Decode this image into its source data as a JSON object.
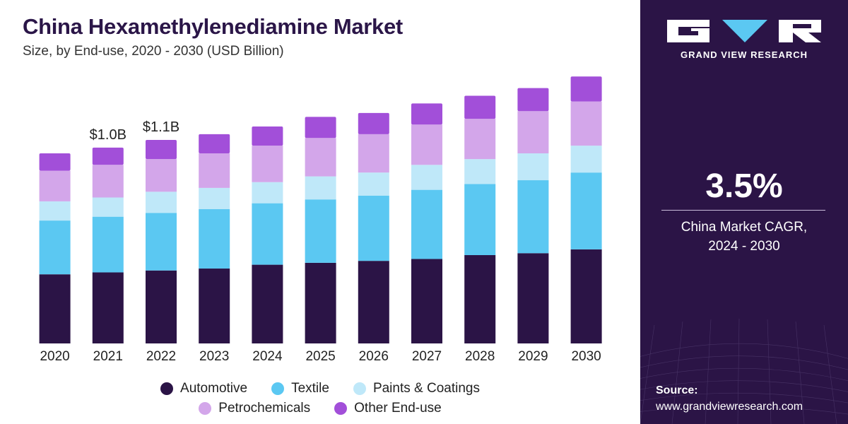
{
  "chart_data": {
    "type": "bar",
    "stacked": true,
    "title": "China Hexamethylenediamine Market",
    "subtitle": "Size, by End-use, 2020 - 2030 (USD Billion)",
    "categories": [
      "2020",
      "2021",
      "2022",
      "2023",
      "2024",
      "2025",
      "2026",
      "2027",
      "2028",
      "2029",
      "2030"
    ],
    "series": [
      {
        "name": "Automotive",
        "color": "#2b1446",
        "values": [
          0.36,
          0.37,
          0.38,
          0.39,
          0.41,
          0.42,
          0.43,
          0.44,
          0.46,
          0.47,
          0.49
        ]
      },
      {
        "name": "Textile",
        "color": "#5bc8f2",
        "values": [
          0.28,
          0.29,
          0.3,
          0.31,
          0.32,
          0.33,
          0.34,
          0.36,
          0.37,
          0.38,
          0.4
        ]
      },
      {
        "name": "Paints & Coatings",
        "color": "#bfe8f9",
        "values": [
          0.1,
          0.1,
          0.11,
          0.11,
          0.11,
          0.12,
          0.12,
          0.13,
          0.13,
          0.14,
          0.14
        ]
      },
      {
        "name": "Petrochemicals",
        "color": "#d3a6ea",
        "values": [
          0.16,
          0.17,
          0.17,
          0.18,
          0.19,
          0.2,
          0.2,
          0.21,
          0.21,
          0.22,
          0.23
        ]
      },
      {
        "name": "Other End-use",
        "color": "#a24fd9",
        "values": [
          0.09,
          0.09,
          0.1,
          0.1,
          0.1,
          0.11,
          0.11,
          0.11,
          0.12,
          0.12,
          0.13
        ]
      }
    ],
    "annotations": [
      {
        "category": "2021",
        "text": "$1.0B"
      },
      {
        "category": "2022",
        "text": "$1.1B"
      }
    ],
    "ylim": [
      0,
      1.45
    ],
    "grid": false,
    "legend_position": "bottom"
  },
  "side_panel": {
    "brand": "GRAND VIEW RESEARCH",
    "cagr_value": "3.5%",
    "cagr_label_line1": "China Market CAGR,",
    "cagr_label_line2": "2024 - 2030",
    "source_label": "Source:",
    "source_url": "www.grandviewresearch.com",
    "background_color": "#2b1446"
  }
}
